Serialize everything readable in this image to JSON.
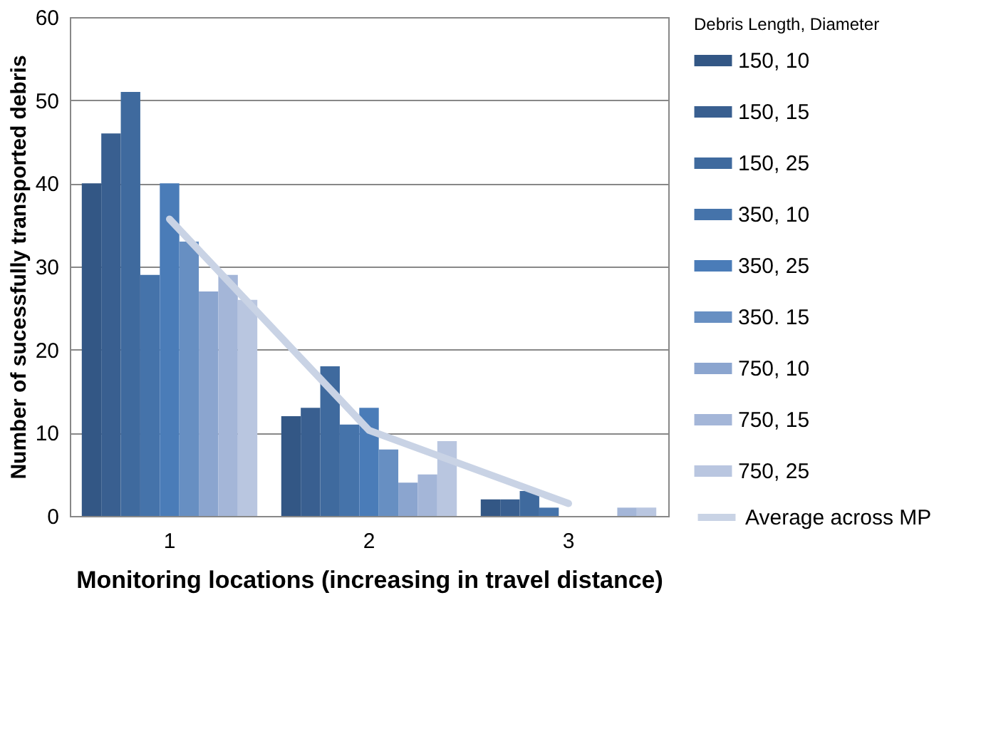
{
  "chart_data": {
    "type": "bar",
    "xlabel": "Monitoring locations (increasing in travel distance)",
    "ylabel": "Number of sucessfully transported debris",
    "legend_title": "Debris Length, Diameter",
    "categories": [
      "1",
      "2",
      "3"
    ],
    "series": [
      {
        "name": "150, 10",
        "color": "#335785",
        "values": [
          40,
          12,
          2
        ]
      },
      {
        "name": "150, 15",
        "color": "#395f90",
        "values": [
          46,
          13,
          2
        ]
      },
      {
        "name": "150, 25",
        "color": "#3f6a9e",
        "values": [
          51,
          18,
          3
        ]
      },
      {
        "name": "350, 10",
        "color": "#4573aa",
        "values": [
          29,
          11,
          1
        ]
      },
      {
        "name": "350, 25",
        "color": "#4a7cb8",
        "values": [
          40,
          13,
          0
        ]
      },
      {
        "name": "350. 15",
        "color": "#678fc2",
        "values": [
          33,
          8,
          0
        ]
      },
      {
        "name": "750, 10",
        "color": "#8ba5cf",
        "values": [
          27,
          4,
          0
        ]
      },
      {
        "name": "750, 15",
        "color": "#a4b6d8",
        "values": [
          29,
          5,
          1
        ]
      },
      {
        "name": "750, 25",
        "color": "#b9c6e0",
        "values": [
          26,
          9,
          1
        ]
      },
      {
        "name": "Average across MP",
        "type": "line",
        "color": "#c9d3e5",
        "values": [
          35.7,
          10.3,
          1.5
        ]
      }
    ],
    "ylim": [
      0,
      60
    ],
    "yticks": [
      0,
      10,
      20,
      30,
      40,
      50,
      60
    ],
    "grid": "y",
    "legend": "right"
  }
}
